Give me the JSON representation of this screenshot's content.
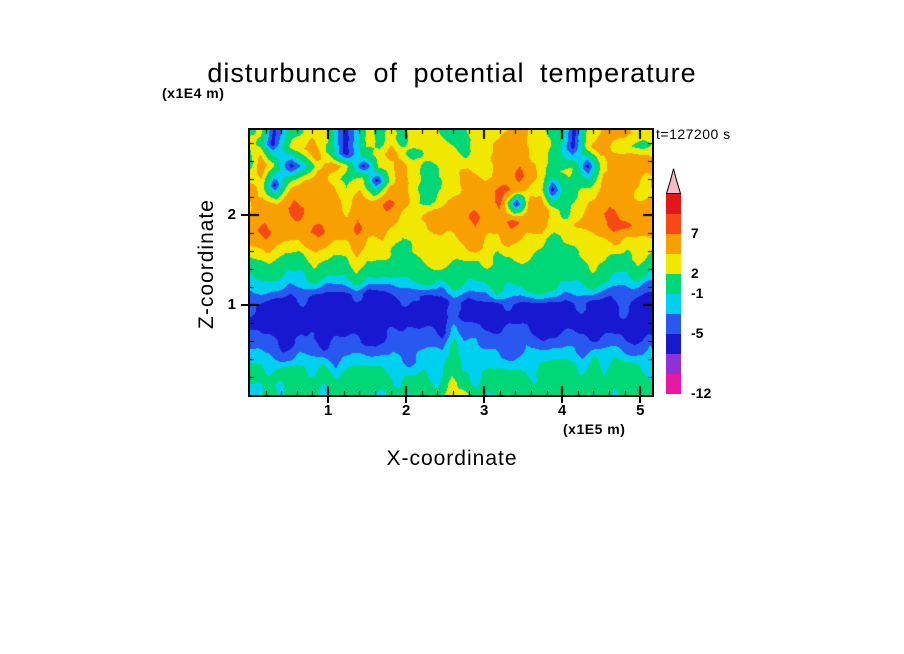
{
  "chart_data": {
    "type": "heatmap",
    "title": "disturbunce of potential temperature",
    "xlabel": "X-coordinate",
    "ylabel": "Z-coordinate",
    "x_unit": "(x1E5 m)",
    "y_unit": "(x1E4 m)",
    "time_label": "t=127200 s",
    "x_range": [
      0,
      5.15
    ],
    "y_range": [
      0,
      2.95
    ],
    "x_ticks": [
      1,
      2,
      3,
      4,
      5
    ],
    "y_ticks": [
      1,
      2
    ],
    "minor_tick_interval": 0.2,
    "levels": [
      -12,
      -9,
      -7,
      -5,
      -3,
      -1,
      2,
      4,
      7,
      10,
      13
    ],
    "palette": [
      "#f020a0",
      "#e818a0",
      "#9030d8",
      "#1818d0",
      "#2858f0",
      "#00d0f0",
      "#00d878",
      "#f0e800",
      "#f8a000",
      "#f84818",
      "#e01818",
      "#f8b8c8"
    ],
    "colorbar_labeled_levels": [
      7,
      2,
      -1,
      -5,
      -12
    ],
    "grid": {
      "nx": 27,
      "nz": 15,
      "row_order": "top_to_bottom (z = 2.95 down to 0)",
      "values": [
        [
          1,
          3,
          -6,
          1,
          3,
          3,
          -6,
          3,
          1,
          3,
          1,
          3,
          3,
          1,
          1,
          3,
          3,
          5.5,
          3,
          1,
          1,
          -6,
          1,
          3,
          5.5,
          3,
          3
        ],
        [
          3,
          1,
          -6,
          3,
          5.5,
          1,
          -6,
          1,
          3,
          5.5,
          3,
          1,
          3,
          3,
          1,
          3,
          5.5,
          5.5,
          3,
          3,
          1,
          -6,
          3,
          5.5,
          3,
          1,
          3
        ],
        [
          1,
          5.5,
          3,
          -6,
          3,
          5.5,
          3,
          -6,
          3,
          3,
          5.5,
          3,
          1,
          3,
          5.5,
          3,
          5.5,
          8,
          5.5,
          3,
          1,
          3,
          -6,
          3,
          5.5,
          5.5,
          3
        ],
        [
          5.5,
          3,
          -6,
          3,
          5.5,
          3,
          1,
          3,
          -6,
          3,
          5.5,
          3,
          1,
          3,
          5.5,
          5.5,
          8,
          5.5,
          3,
          3,
          -6,
          1,
          3,
          5.5,
          5.5,
          3,
          5.5
        ],
        [
          3,
          5.5,
          5.5,
          8,
          5.5,
          5.5,
          3,
          5.5,
          5.5,
          8,
          5.5,
          3,
          1,
          5.5,
          5.5,
          5.5,
          8,
          -6,
          5.5,
          5.5,
          3,
          1,
          5.5,
          8,
          5.5,
          5.5,
          3
        ],
        [
          5.5,
          8,
          5.5,
          5.5,
          8,
          5.5,
          5.5,
          8,
          5.5,
          5.5,
          3,
          3,
          5.5,
          5.5,
          8,
          5.5,
          5.5,
          8,
          5.5,
          5.5,
          3,
          3,
          5.5,
          8,
          8,
          5.5,
          5.5
        ],
        [
          3,
          5.5,
          3,
          3,
          5.5,
          3,
          3,
          5.5,
          3,
          3,
          1,
          3,
          3,
          3,
          5.5,
          3,
          3,
          5.5,
          3,
          3,
          1,
          3,
          3,
          5.5,
          3,
          3,
          3
        ],
        [
          1,
          3,
          1,
          1,
          3,
          1,
          1,
          3,
          1,
          1,
          1,
          1,
          3,
          1,
          1,
          3,
          1,
          1,
          3,
          1,
          1,
          1,
          3,
          1,
          1,
          3,
          1
        ],
        [
          -2,
          1,
          -2,
          -2,
          1,
          -2,
          -2,
          1,
          -2,
          -2,
          -2,
          1,
          -2,
          1,
          -2,
          -2,
          1,
          -2,
          -2,
          1,
          -2,
          -2,
          1,
          -2,
          -2,
          1,
          -2
        ],
        [
          -4,
          -6,
          -6,
          -4,
          -6,
          -6,
          -6,
          -4,
          -6,
          -6,
          -4,
          -6,
          -6,
          -4,
          -6,
          -6,
          -6,
          -4,
          -6,
          -6,
          -6,
          -4,
          -6,
          -6,
          -4,
          -6,
          -6
        ],
        [
          -6,
          -6,
          -6,
          -6,
          -6,
          -6,
          -6,
          -6,
          -6,
          -6,
          -6,
          -6,
          -6,
          -4,
          -6,
          -6,
          -6,
          -6,
          -6,
          -6,
          -6,
          -6,
          -6,
          -6,
          -6,
          -6,
          -6
        ],
        [
          -4,
          -4,
          -6,
          -4,
          -4,
          -6,
          -4,
          -4,
          -6,
          -4,
          -4,
          -4,
          -6,
          -2,
          -4,
          -4,
          -6,
          -4,
          -4,
          -6,
          -4,
          -4,
          -6,
          -4,
          -4,
          -6,
          -4
        ],
        [
          -2,
          -2,
          -4,
          -2,
          -2,
          -2,
          -4,
          -2,
          -2,
          -2,
          -4,
          -2,
          -2,
          1,
          -2,
          -2,
          -2,
          -4,
          -2,
          -2,
          -2,
          -4,
          -2,
          -2,
          -2,
          -4,
          -2
        ],
        [
          1,
          -2,
          1,
          1,
          -2,
          1,
          -2,
          1,
          1,
          -2,
          1,
          1,
          -2,
          3,
          1,
          -2,
          1,
          1,
          -2,
          1,
          1,
          -2,
          1,
          -2,
          1,
          1,
          -2
        ],
        [
          -2,
          1,
          -2,
          1,
          1,
          -2,
          1,
          1,
          -2,
          1,
          -2,
          1,
          1,
          3,
          3,
          1,
          -2,
          1,
          1,
          -2,
          1,
          1,
          -2,
          1,
          -2,
          1,
          1
        ]
      ]
    }
  }
}
